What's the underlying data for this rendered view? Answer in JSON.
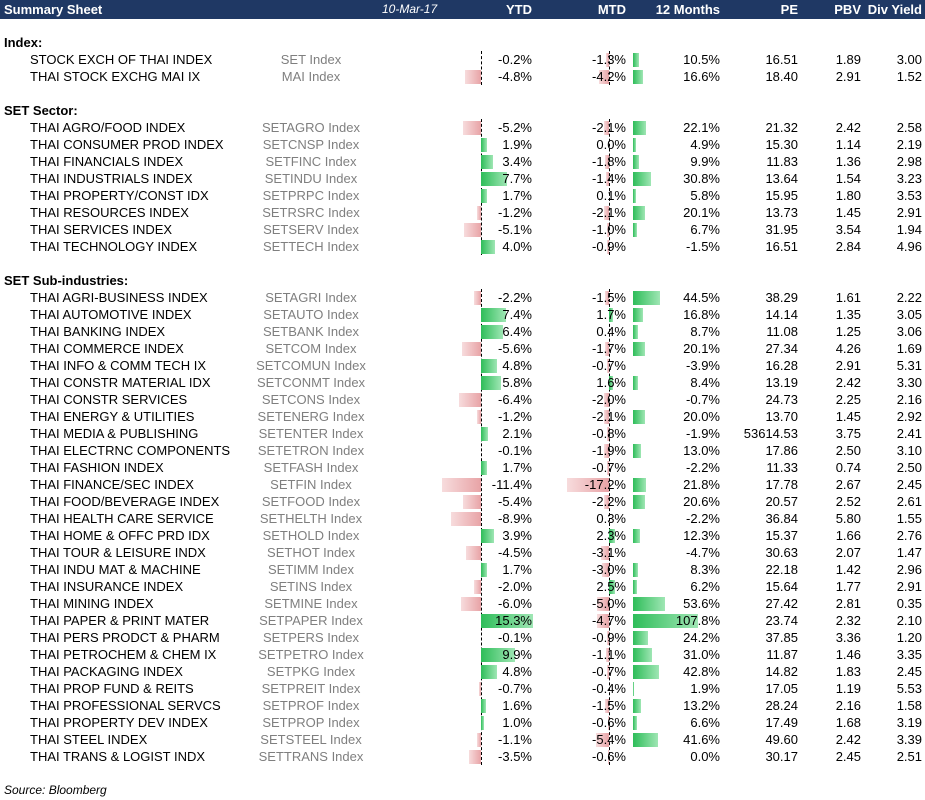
{
  "header": {
    "title": "Summary Sheet",
    "date": "10-Mar-17",
    "columns": {
      "ytd": "YTD",
      "mtd": "MTD",
      "m12": "12 Months",
      "pe": "PE",
      "pbv": "PBV",
      "div": "Div Yield"
    }
  },
  "colors": {
    "header_bg": "#1f3864",
    "positive_bar": "#2ebd59",
    "negative_bar": "#e8a3a6"
  },
  "sections": [
    {
      "title": "Index:",
      "rows": [
        {
          "name": "STOCK EXCH OF THAI INDEX",
          "ticker": "SET Index",
          "ytd": "-0.2%",
          "mtd": "-1.3%",
          "m12": "10.5%",
          "pe": "16.51",
          "pbv": "1.89",
          "div": "3.00"
        },
        {
          "name": "THAI STOCK EXCHG MAI IX",
          "ticker": "MAI Index",
          "ytd": "-4.8%",
          "mtd": "-4.2%",
          "m12": "16.6%",
          "pe": "18.40",
          "pbv": "2.91",
          "div": "1.52"
        }
      ]
    },
    {
      "title": "SET Sector:",
      "rows": [
        {
          "name": "THAI AGRO/FOOD INDEX",
          "ticker": "SETAGRO Index",
          "ytd": "-5.2%",
          "mtd": "-2.1%",
          "m12": "22.1%",
          "pe": "21.32",
          "pbv": "2.42",
          "div": "2.58"
        },
        {
          "name": "THAI CONSUMER PROD INDEX",
          "ticker": "SETCNSP Index",
          "ytd": "1.9%",
          "mtd": "0.0%",
          "m12": "4.9%",
          "pe": "15.30",
          "pbv": "1.14",
          "div": "2.19"
        },
        {
          "name": "THAI FINANCIALS INDEX",
          "ticker": "SETFINC Index",
          "ytd": "3.4%",
          "mtd": "-1.8%",
          "m12": "9.9%",
          "pe": "11.83",
          "pbv": "1.36",
          "div": "2.98"
        },
        {
          "name": "THAI INDUSTRIALS INDEX",
          "ticker": "SETINDU Index",
          "ytd": "7.7%",
          "mtd": "-1.4%",
          "m12": "30.8%",
          "pe": "13.64",
          "pbv": "1.54",
          "div": "3.23"
        },
        {
          "name": "THAI PROPERTY/CONST IDX",
          "ticker": "SETPRPC Index",
          "ytd": "1.7%",
          "mtd": "0.1%",
          "m12": "5.8%",
          "pe": "15.95",
          "pbv": "1.80",
          "div": "3.53"
        },
        {
          "name": "THAI RESOURCES INDEX",
          "ticker": "SETRSRC Index",
          "ytd": "-1.2%",
          "mtd": "-2.1%",
          "m12": "20.1%",
          "pe": "13.73",
          "pbv": "1.45",
          "div": "2.91"
        },
        {
          "name": "THAI SERVICES INDEX",
          "ticker": "SETSERV Index",
          "ytd": "-5.1%",
          "mtd": "-1.0%",
          "m12": "6.7%",
          "pe": "31.95",
          "pbv": "3.54",
          "div": "1.94"
        },
        {
          "name": "THAI TECHNOLOGY INDEX",
          "ticker": "SETTECH Index",
          "ytd": "4.0%",
          "mtd": "-0.9%",
          "m12": "-1.5%",
          "pe": "16.51",
          "pbv": "2.84",
          "div": "4.96"
        }
      ]
    },
    {
      "title": "SET Sub-industries:",
      "rows": [
        {
          "name": "THAI AGRI-BUSINESS INDEX",
          "ticker": "SETAGRI Index",
          "ytd": "-2.2%",
          "mtd": "-1.5%",
          "m12": "44.5%",
          "pe": "38.29",
          "pbv": "1.61",
          "div": "2.22"
        },
        {
          "name": "THAI AUTOMOTIVE INDEX",
          "ticker": "SETAUTO Index",
          "ytd": "7.4%",
          "mtd": "1.7%",
          "m12": "16.8%",
          "pe": "14.14",
          "pbv": "1.35",
          "div": "3.05"
        },
        {
          "name": "THAI BANKING INDEX",
          "ticker": "SETBANK Index",
          "ytd": "6.4%",
          "mtd": "0.4%",
          "m12": "8.7%",
          "pe": "11.08",
          "pbv": "1.25",
          "div": "3.06"
        },
        {
          "name": "THAI COMMERCE INDEX",
          "ticker": "SETCOM Index",
          "ytd": "-5.6%",
          "mtd": "-1.7%",
          "m12": "20.1%",
          "pe": "27.34",
          "pbv": "4.26",
          "div": "1.69"
        },
        {
          "name": "THAI INFO & COMM TECH IX",
          "ticker": "SETCOMUN Index",
          "ytd": "4.8%",
          "mtd": "-0.7%",
          "m12": "-3.9%",
          "pe": "16.28",
          "pbv": "2.91",
          "div": "5.31"
        },
        {
          "name": "THAI CONSTR MATERIAL IDX",
          "ticker": "SETCONMT Index",
          "ytd": "5.8%",
          "mtd": "1.6%",
          "m12": "8.4%",
          "pe": "13.19",
          "pbv": "2.42",
          "div": "3.30"
        },
        {
          "name": "THAI CONSTR SERVICES",
          "ticker": "SETCONS Index",
          "ytd": "-6.4%",
          "mtd": "-2.0%",
          "m12": "-0.7%",
          "pe": "24.73",
          "pbv": "2.25",
          "div": "2.16"
        },
        {
          "name": "THAI ENERGY & UTILITIES",
          "ticker": "SETENERG Index",
          "ytd": "-1.2%",
          "mtd": "-2.1%",
          "m12": "20.0%",
          "pe": "13.70",
          "pbv": "1.45",
          "div": "2.92"
        },
        {
          "name": "THAI MEDIA & PUBLISHING",
          "ticker": "SETENTER Index",
          "ytd": "2.1%",
          "mtd": "-0.8%",
          "m12": "-1.9%",
          "pe": "53614.53",
          "pbv": "3.75",
          "div": "2.41"
        },
        {
          "name": "THAI ELECTRNC COMPONENTS",
          "ticker": "SETETRON Index",
          "ytd": "-0.1%",
          "mtd": "-1.9%",
          "m12": "13.0%",
          "pe": "17.86",
          "pbv": "2.50",
          "div": "3.10"
        },
        {
          "name": "THAI FASHION INDEX",
          "ticker": "SETFASH Index",
          "ytd": "1.7%",
          "mtd": "-0.7%",
          "m12": "-2.2%",
          "pe": "11.33",
          "pbv": "0.74",
          "div": "2.50"
        },
        {
          "name": "THAI FINANCE/SEC INDEX",
          "ticker": "SETFIN Index",
          "ytd": "-11.4%",
          "mtd": "-17.2%",
          "m12": "21.8%",
          "pe": "17.78",
          "pbv": "2.67",
          "div": "2.45"
        },
        {
          "name": "THAI FOOD/BEVERAGE INDEX",
          "ticker": "SETFOOD Index",
          "ytd": "-5.4%",
          "mtd": "-2.2%",
          "m12": "20.6%",
          "pe": "20.57",
          "pbv": "2.52",
          "div": "2.61"
        },
        {
          "name": "THAI HEALTH CARE SERVICE",
          "ticker": "SETHELTH Index",
          "ytd": "-8.9%",
          "mtd": "0.3%",
          "m12": "-2.2%",
          "pe": "36.84",
          "pbv": "5.80",
          "div": "1.55"
        },
        {
          "name": "THAI HOME & OFFC PRD IDX",
          "ticker": "SETHOLD Index",
          "ytd": "3.9%",
          "mtd": "2.3%",
          "m12": "12.3%",
          "pe": "15.37",
          "pbv": "1.66",
          "div": "2.76"
        },
        {
          "name": "THAI TOUR & LEISURE INDX",
          "ticker": "SETHOT Index",
          "ytd": "-4.5%",
          "mtd": "-3.1%",
          "m12": "-4.7%",
          "pe": "30.63",
          "pbv": "2.07",
          "div": "1.47"
        },
        {
          "name": "THAI INDU MAT & MACHINE",
          "ticker": "SETIMM Index",
          "ytd": "1.7%",
          "mtd": "-3.0%",
          "m12": "8.3%",
          "pe": "22.18",
          "pbv": "1.42",
          "div": "2.96"
        },
        {
          "name": "THAI INSURANCE INDEX",
          "ticker": "SETINS Index",
          "ytd": "-2.0%",
          "mtd": "2.5%",
          "m12": "6.2%",
          "pe": "15.64",
          "pbv": "1.77",
          "div": "2.91"
        },
        {
          "name": "THAI MINING INDEX",
          "ticker": "SETMINE Index",
          "ytd": "-6.0%",
          "mtd": "-5.0%",
          "m12": "53.6%",
          "pe": "27.42",
          "pbv": "2.81",
          "div": "0.35"
        },
        {
          "name": "THAI PAPER & PRINT MATER",
          "ticker": "SETPAPER Index",
          "ytd": "15.3%",
          "mtd": "-4.7%",
          "m12": "107.8%",
          "pe": "23.74",
          "pbv": "2.32",
          "div": "2.10"
        },
        {
          "name": "THAI PERS PRODCT & PHARM",
          "ticker": "SETPERS Index",
          "ytd": "-0.1%",
          "mtd": "-0.9%",
          "m12": "24.2%",
          "pe": "37.85",
          "pbv": "3.36",
          "div": "1.20"
        },
        {
          "name": "THAI PETROCHEM & CHEM IX",
          "ticker": "SETPETRO Index",
          "ytd": "9.9%",
          "mtd": "-1.1%",
          "m12": "31.0%",
          "pe": "11.87",
          "pbv": "1.46",
          "div": "3.35"
        },
        {
          "name": "THAI PACKAGING INDEX",
          "ticker": "SETPKG Index",
          "ytd": "4.8%",
          "mtd": "-0.7%",
          "m12": "42.8%",
          "pe": "14.82",
          "pbv": "1.83",
          "div": "2.45"
        },
        {
          "name": "THAI PROP FUND & REITS",
          "ticker": "SETPREIT Index",
          "ytd": "-0.7%",
          "mtd": "-0.4%",
          "m12": "1.9%",
          "pe": "17.05",
          "pbv": "1.19",
          "div": "5.53"
        },
        {
          "name": "THAI PROFESSIONAL SERVCS",
          "ticker": "SETPROF Index",
          "ytd": "1.6%",
          "mtd": "-1.5%",
          "m12": "13.2%",
          "pe": "28.24",
          "pbv": "2.16",
          "div": "1.58"
        },
        {
          "name": "THAI PROPERTY DEV INDEX",
          "ticker": "SETPROP Index",
          "ytd": "1.0%",
          "mtd": "-0.6%",
          "m12": "6.6%",
          "pe": "17.49",
          "pbv": "1.68",
          "div": "3.19"
        },
        {
          "name": "THAI STEEL INDEX",
          "ticker": "SETSTEEL Index",
          "ytd": "-1.1%",
          "mtd": "-5.4%",
          "m12": "41.6%",
          "pe": "49.60",
          "pbv": "2.42",
          "div": "3.39"
        },
        {
          "name": "THAI TRANS & LOGIST INDX",
          "ticker": "SETTRANS Index",
          "ytd": "-3.5%",
          "mtd": "-0.6%",
          "m12": "0.0%",
          "pe": "30.17",
          "pbv": "2.45",
          "div": "2.51"
        }
      ]
    }
  ],
  "footer": {
    "source": "Source: Bloomberg"
  }
}
